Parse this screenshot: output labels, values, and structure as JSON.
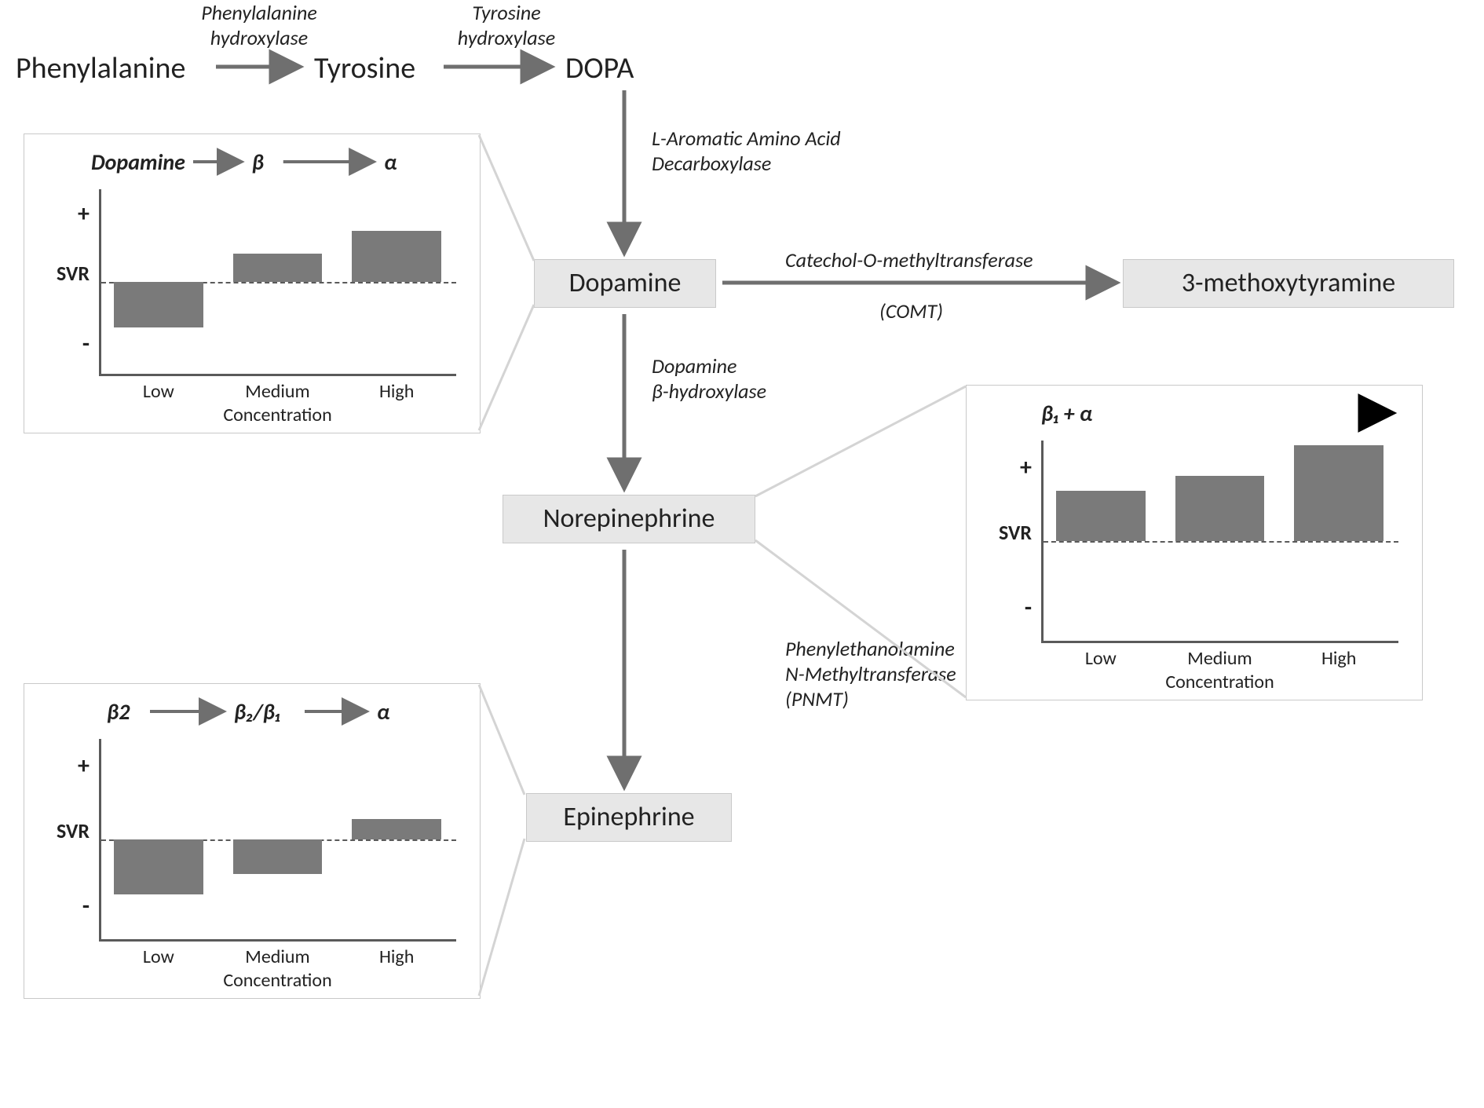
{
  "colors": {
    "bg": "#ffffff",
    "text": "#222222",
    "node_bg": "#e7e7e7",
    "node_border": "#c9c9c9",
    "chart_border": "#c9c9c9",
    "bar_fill": "#7a7a7a",
    "axis": "#5a5a5a",
    "callout": "#d4d4d4",
    "arrow": "#6f6f6f"
  },
  "fonts": {
    "pathway_node": 38,
    "enzyme_label": 26,
    "chart_header": 28,
    "chart_axis_sign": 30,
    "chart_axis_svr": 26,
    "chart_tick": 24,
    "chart_xlabel": 24
  },
  "pathway": {
    "phenylalanine": "Phenylalanine",
    "tyrosine": "Tyrosine",
    "dopa": "DOPA",
    "dopamine": "Dopamine",
    "norepinephrine": "Norepinephrine",
    "epinephrine": "Epinephrine",
    "methoxytyramine": "3-methoxytyramine",
    "enz_phe_hydrox": "Phenylalanine\nhydroxylase",
    "enz_tyr_hydrox": "Tyrosine\nhydroxylase",
    "enz_laaad": "L-Aromatic Amino Acid\nDecarboxylase",
    "enz_comt": "Catechol-O-methyltransferase",
    "enz_comt_abbr": "(COMT)",
    "enz_dbh": "Dopamine\nβ-hydroxylase",
    "enz_pnmt": "Phenylethanolamine\nN-Methyltransferase\n(PNMT)"
  },
  "charts": {
    "shared": {
      "ylabel_plus": "+",
      "ylabel_svr": "SVR",
      "ylabel_minus": "-",
      "xticks": [
        "Low",
        "Medium",
        "High"
      ],
      "xlabel": "Concentration",
      "ylim": [
        -1,
        1
      ]
    },
    "dopamine": {
      "header_parts": [
        "Dopamine",
        "β",
        "α"
      ],
      "values": [
        -0.5,
        0.3,
        0.55
      ]
    },
    "norepinephrine": {
      "header_text": "β₁ + α",
      "values": [
        0.5,
        0.65,
        0.95
      ]
    },
    "epinephrine": {
      "header_parts": [
        "β2",
        "β₂/β₁",
        "α"
      ],
      "values": [
        -0.55,
        -0.35,
        0.2
      ]
    }
  }
}
